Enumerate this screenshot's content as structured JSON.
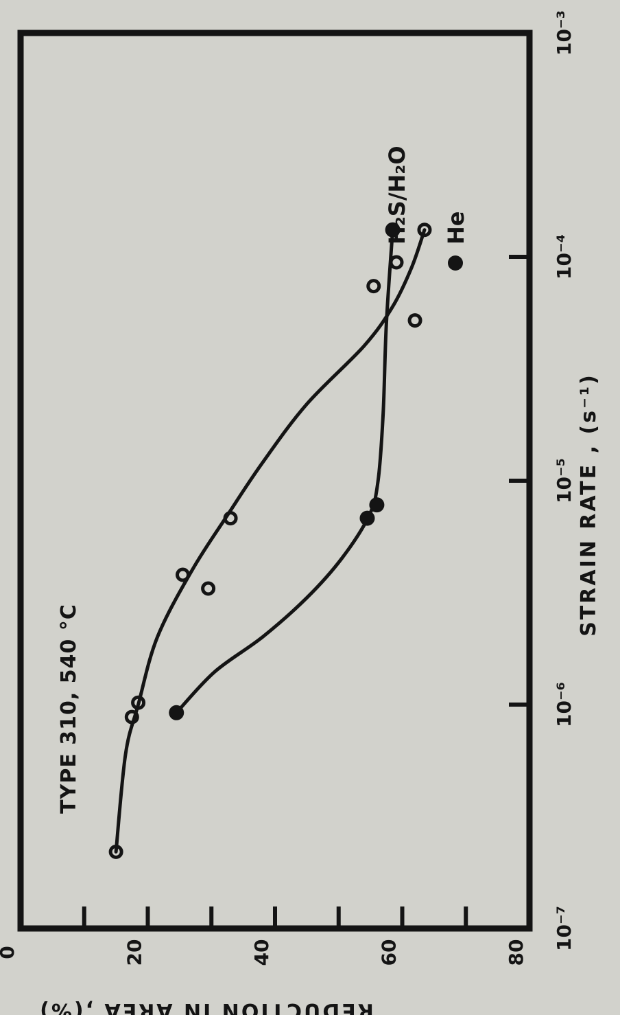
{
  "chart_data": {
    "type": "scatter",
    "annotation": "TYPE 310, 540 °C",
    "xlabel": "STRAIN RATE , (s⁻¹)",
    "ylabel": "REDUCTION IN AREA ,(%)",
    "xscale": "log",
    "xlim": [
      1e-07,
      0.001
    ],
    "ylim": [
      0,
      80
    ],
    "x_ticks": [
      {
        "value": 1e-07,
        "label": "10⁻⁷"
      },
      {
        "value": 1e-06,
        "label": "10⁻⁶"
      },
      {
        "value": 1e-05,
        "label": "10⁻⁵"
      },
      {
        "value": 0.0001,
        "label": "10⁻⁴"
      },
      {
        "value": 0.001,
        "label": "10⁻³"
      }
    ],
    "y_ticks": [
      {
        "value": 0,
        "label": "0"
      },
      {
        "value": 20,
        "label": "20"
      },
      {
        "value": 40,
        "label": "40"
      },
      {
        "value": 60,
        "label": "60"
      },
      {
        "value": 80,
        "label": "80"
      }
    ],
    "y_minor_ticks": [
      10,
      20,
      30,
      40,
      50,
      60,
      70
    ],
    "orientation": "rotated 90° counter-clockwise",
    "legend_position": "right",
    "series": [
      {
        "name": "H₂S/H₂O",
        "marker": "open-circle",
        "color": "#141414",
        "points": [
          {
            "x": 2.2e-07,
            "y": 15
          },
          {
            "x": 8.8e-07,
            "y": 17.5
          },
          {
            "x": 1.02e-06,
            "y": 18.5
          },
          {
            "x": 3.3e-06,
            "y": 29.5
          },
          {
            "x": 3.8e-06,
            "y": 25.5
          },
          {
            "x": 6.8e-06,
            "y": 33
          },
          {
            "x": 5.2e-05,
            "y": 62
          },
          {
            "x": 7.4e-05,
            "y": 55.5
          },
          {
            "x": 0.000132,
            "y": 63.5
          }
        ],
        "curve": [
          {
            "x": 2.2e-07,
            "y": 15
          },
          {
            "x": 6e-07,
            "y": 16.5
          },
          {
            "x": 1e-06,
            "y": 18.5
          },
          {
            "x": 2e-06,
            "y": 21.5
          },
          {
            "x": 4e-06,
            "y": 27
          },
          {
            "x": 7e-06,
            "y": 32.5
          },
          {
            "x": 1.2e-05,
            "y": 38
          },
          {
            "x": 2.2e-05,
            "y": 45
          },
          {
            "x": 4e-05,
            "y": 54
          },
          {
            "x": 6e-05,
            "y": 58.5
          },
          {
            "x": 9e-05,
            "y": 61.5
          },
          {
            "x": 0.000132,
            "y": 63.5
          }
        ]
      },
      {
        "name": "He",
        "marker": "filled-circle",
        "color": "#141414",
        "points": [
          {
            "x": 9.2e-07,
            "y": 24.5
          },
          {
            "x": 6.8e-06,
            "y": 54.5
          },
          {
            "x": 7.8e-06,
            "y": 56
          },
          {
            "x": 0.000132,
            "y": 58.5
          }
        ],
        "curve": [
          {
            "x": 9.2e-07,
            "y": 24.5
          },
          {
            "x": 1.4e-06,
            "y": 30.5
          },
          {
            "x": 2e-06,
            "y": 38
          },
          {
            "x": 3e-06,
            "y": 45
          },
          {
            "x": 4.5e-06,
            "y": 50.5
          },
          {
            "x": 7e-06,
            "y": 54.8
          },
          {
            "x": 1e-05,
            "y": 56.2
          },
          {
            "x": 2e-05,
            "y": 57
          },
          {
            "x": 5e-05,
            "y": 57.5
          },
          {
            "x": 0.000132,
            "y": 58.5
          }
        ]
      }
    ]
  }
}
